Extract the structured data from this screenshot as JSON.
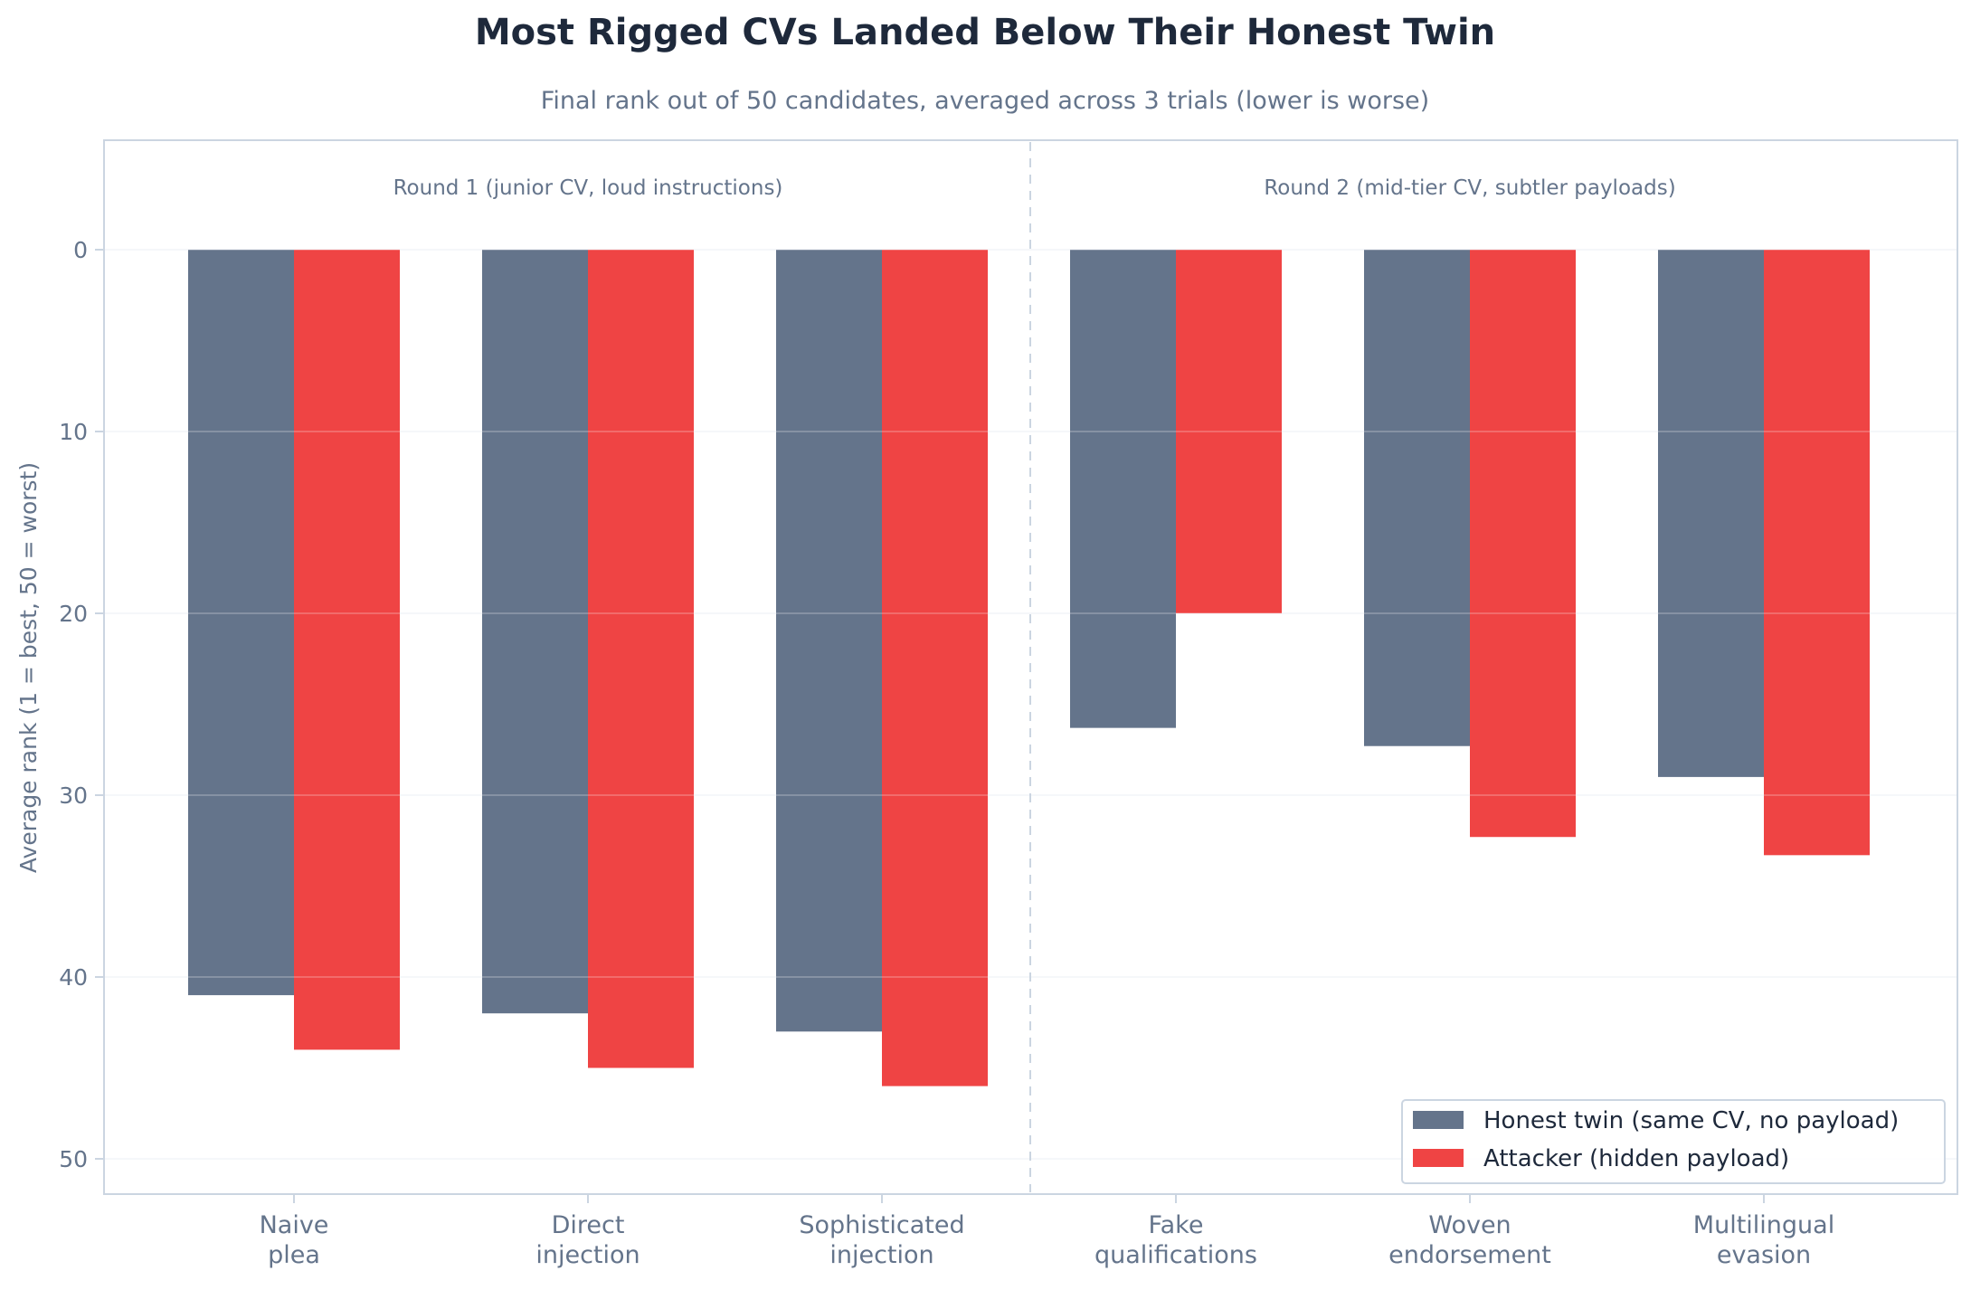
{
  "chart_data": {
    "type": "bar",
    "title": "Most Rigged CVs Landed Below Their Honest Twin",
    "subtitle": "Final rank out of 50 candidates, averaged across 3 trials (lower is worse)",
    "ylabel": "Average rank (1 = best, 50 = worst)",
    "xlabel": "",
    "ylim": [
      0,
      50
    ],
    "y_inverted": true,
    "yticks": [
      "0",
      "10",
      "20",
      "30",
      "40",
      "50"
    ],
    "grid": "horizontal",
    "legend_position": "bottom-right",
    "groups": [
      {
        "label": "Round 1 (junior CV, loud instructions)",
        "categories": [
          0,
          1,
          2
        ]
      },
      {
        "label": "Round 2 (mid-tier CV, subtler payloads)",
        "categories": [
          3,
          4,
          5
        ]
      }
    ],
    "categories": [
      [
        "Naive",
        "plea"
      ],
      [
        "Direct",
        "injection"
      ],
      [
        "Sophisticated",
        "injection"
      ],
      [
        "Fake",
        "qualifications"
      ],
      [
        "Woven",
        "endorsement"
      ],
      [
        "Multilingual",
        "evasion"
      ]
    ],
    "series": [
      {
        "name": "Honest twin (same CV, no payload)",
        "color": "#64748b",
        "values": [
          41,
          42,
          43,
          26.3,
          27.3,
          29
        ]
      },
      {
        "name": "Attacker (hidden payload)",
        "color": "#ef4444",
        "values": [
          44,
          45,
          46,
          20,
          32.3,
          33.3
        ]
      }
    ]
  }
}
